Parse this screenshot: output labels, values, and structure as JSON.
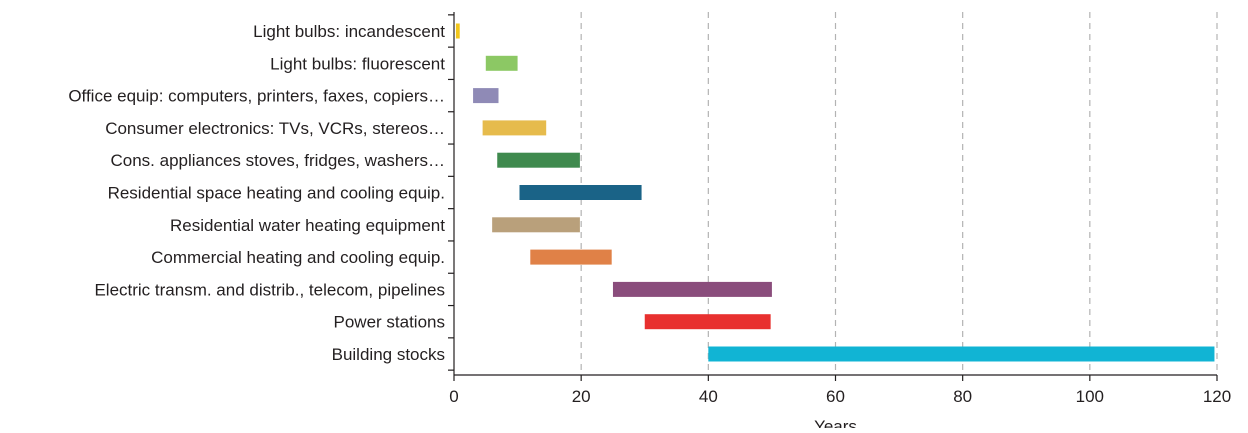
{
  "chart_data": {
    "type": "bar",
    "orientation": "horizontal",
    "style": "floating-range",
    "title": "",
    "xlabel": "Years",
    "ylabel": "",
    "xlim": [
      0,
      120
    ],
    "xticks": [
      0,
      20,
      40,
      60,
      80,
      100,
      120
    ],
    "grid": "vertical dashed lines at x ticks",
    "legend": "none",
    "categories": [
      "Light bulbs: incandescent",
      "Light bulbs: fluorescent",
      "Office equip: computers, printers, faxes, copiers…",
      "Consumer electronics: TVs, VCRs, stereos…",
      "Cons. appliances stoves, fridges, washers…",
      "Residential space heating and cooling equip.",
      "Residential water heating equipment",
      "Commercial heating and cooling equip.",
      "Electric transm. and distrib., telecom, pipelines",
      "Power stations",
      "Building stocks"
    ],
    "ranges": [
      {
        "start": 0.3,
        "end": 0.9,
        "color": "#f2c71b"
      },
      {
        "start": 5,
        "end": 10,
        "color": "#8cc864"
      },
      {
        "start": 3,
        "end": 7,
        "color": "#8f8ab6"
      },
      {
        "start": 4.5,
        "end": 14.5,
        "color": "#e6bb4c"
      },
      {
        "start": 6.8,
        "end": 19.8,
        "color": "#3f8a4e"
      },
      {
        "start": 10.3,
        "end": 29.5,
        "color": "#1a6387"
      },
      {
        "start": 6,
        "end": 19.8,
        "color": "#b9a07b"
      },
      {
        "start": 12,
        "end": 24.8,
        "color": "#e08147"
      },
      {
        "start": 25,
        "end": 50,
        "color": "#8a4d7c"
      },
      {
        "start": 30,
        "end": 49.8,
        "color": "#e8302f"
      },
      {
        "start": 40,
        "end": 119.6,
        "color": "#11b4d4"
      }
    ]
  }
}
